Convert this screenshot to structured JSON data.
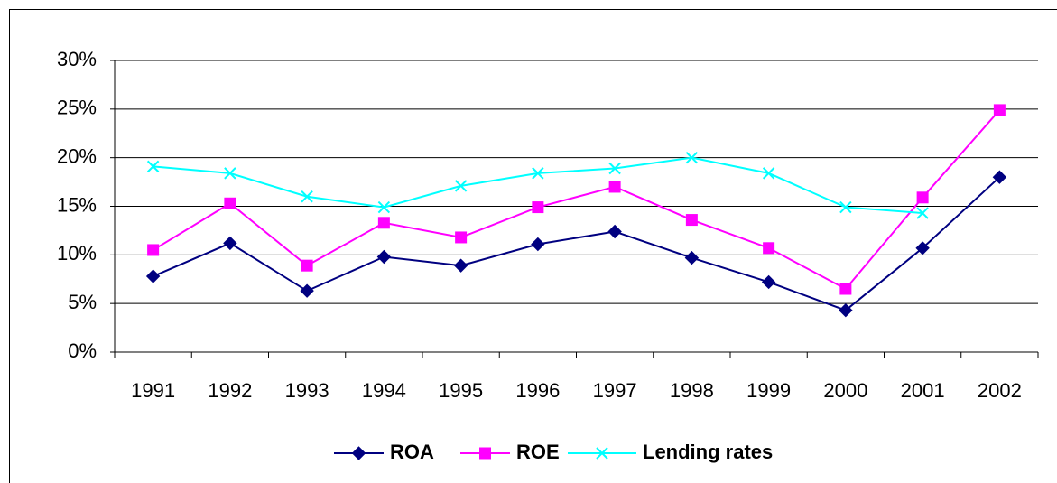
{
  "chart_data": {
    "type": "line",
    "categories": [
      "1991",
      "1992",
      "1993",
      "1994",
      "1995",
      "1996",
      "1997",
      "1998",
      "1999",
      "2000",
      "2001",
      "2002"
    ],
    "series": [
      {
        "name": "ROA",
        "color": "#000080",
        "marker": "diamond",
        "values": [
          7.8,
          11.2,
          6.3,
          9.8,
          8.9,
          11.1,
          12.4,
          9.7,
          7.2,
          4.3,
          10.7,
          18.0
        ]
      },
      {
        "name": "ROE",
        "color": "#ff00ff",
        "marker": "square",
        "values": [
          10.5,
          15.3,
          8.9,
          13.3,
          11.8,
          14.9,
          17.0,
          13.6,
          10.7,
          6.5,
          15.9,
          24.9
        ]
      },
      {
        "name": "Lending rates",
        "color": "#00ffff",
        "marker": "x",
        "values": [
          19.1,
          18.4,
          16.0,
          14.9,
          17.1,
          18.4,
          18.9,
          20.0,
          18.4,
          14.9,
          14.3,
          null
        ]
      }
    ],
    "ylim": [
      0,
      30
    ],
    "yticks": [
      {
        "value": 0,
        "label": "0%"
      },
      {
        "value": 5,
        "label": "5%"
      },
      {
        "value": 10,
        "label": "10%"
      },
      {
        "value": 15,
        "label": "15%"
      },
      {
        "value": 20,
        "label": "20%"
      },
      {
        "value": 25,
        "label": "25%"
      },
      {
        "value": 30,
        "label": "30%"
      }
    ],
    "grid": true,
    "legend": "bottom"
  }
}
